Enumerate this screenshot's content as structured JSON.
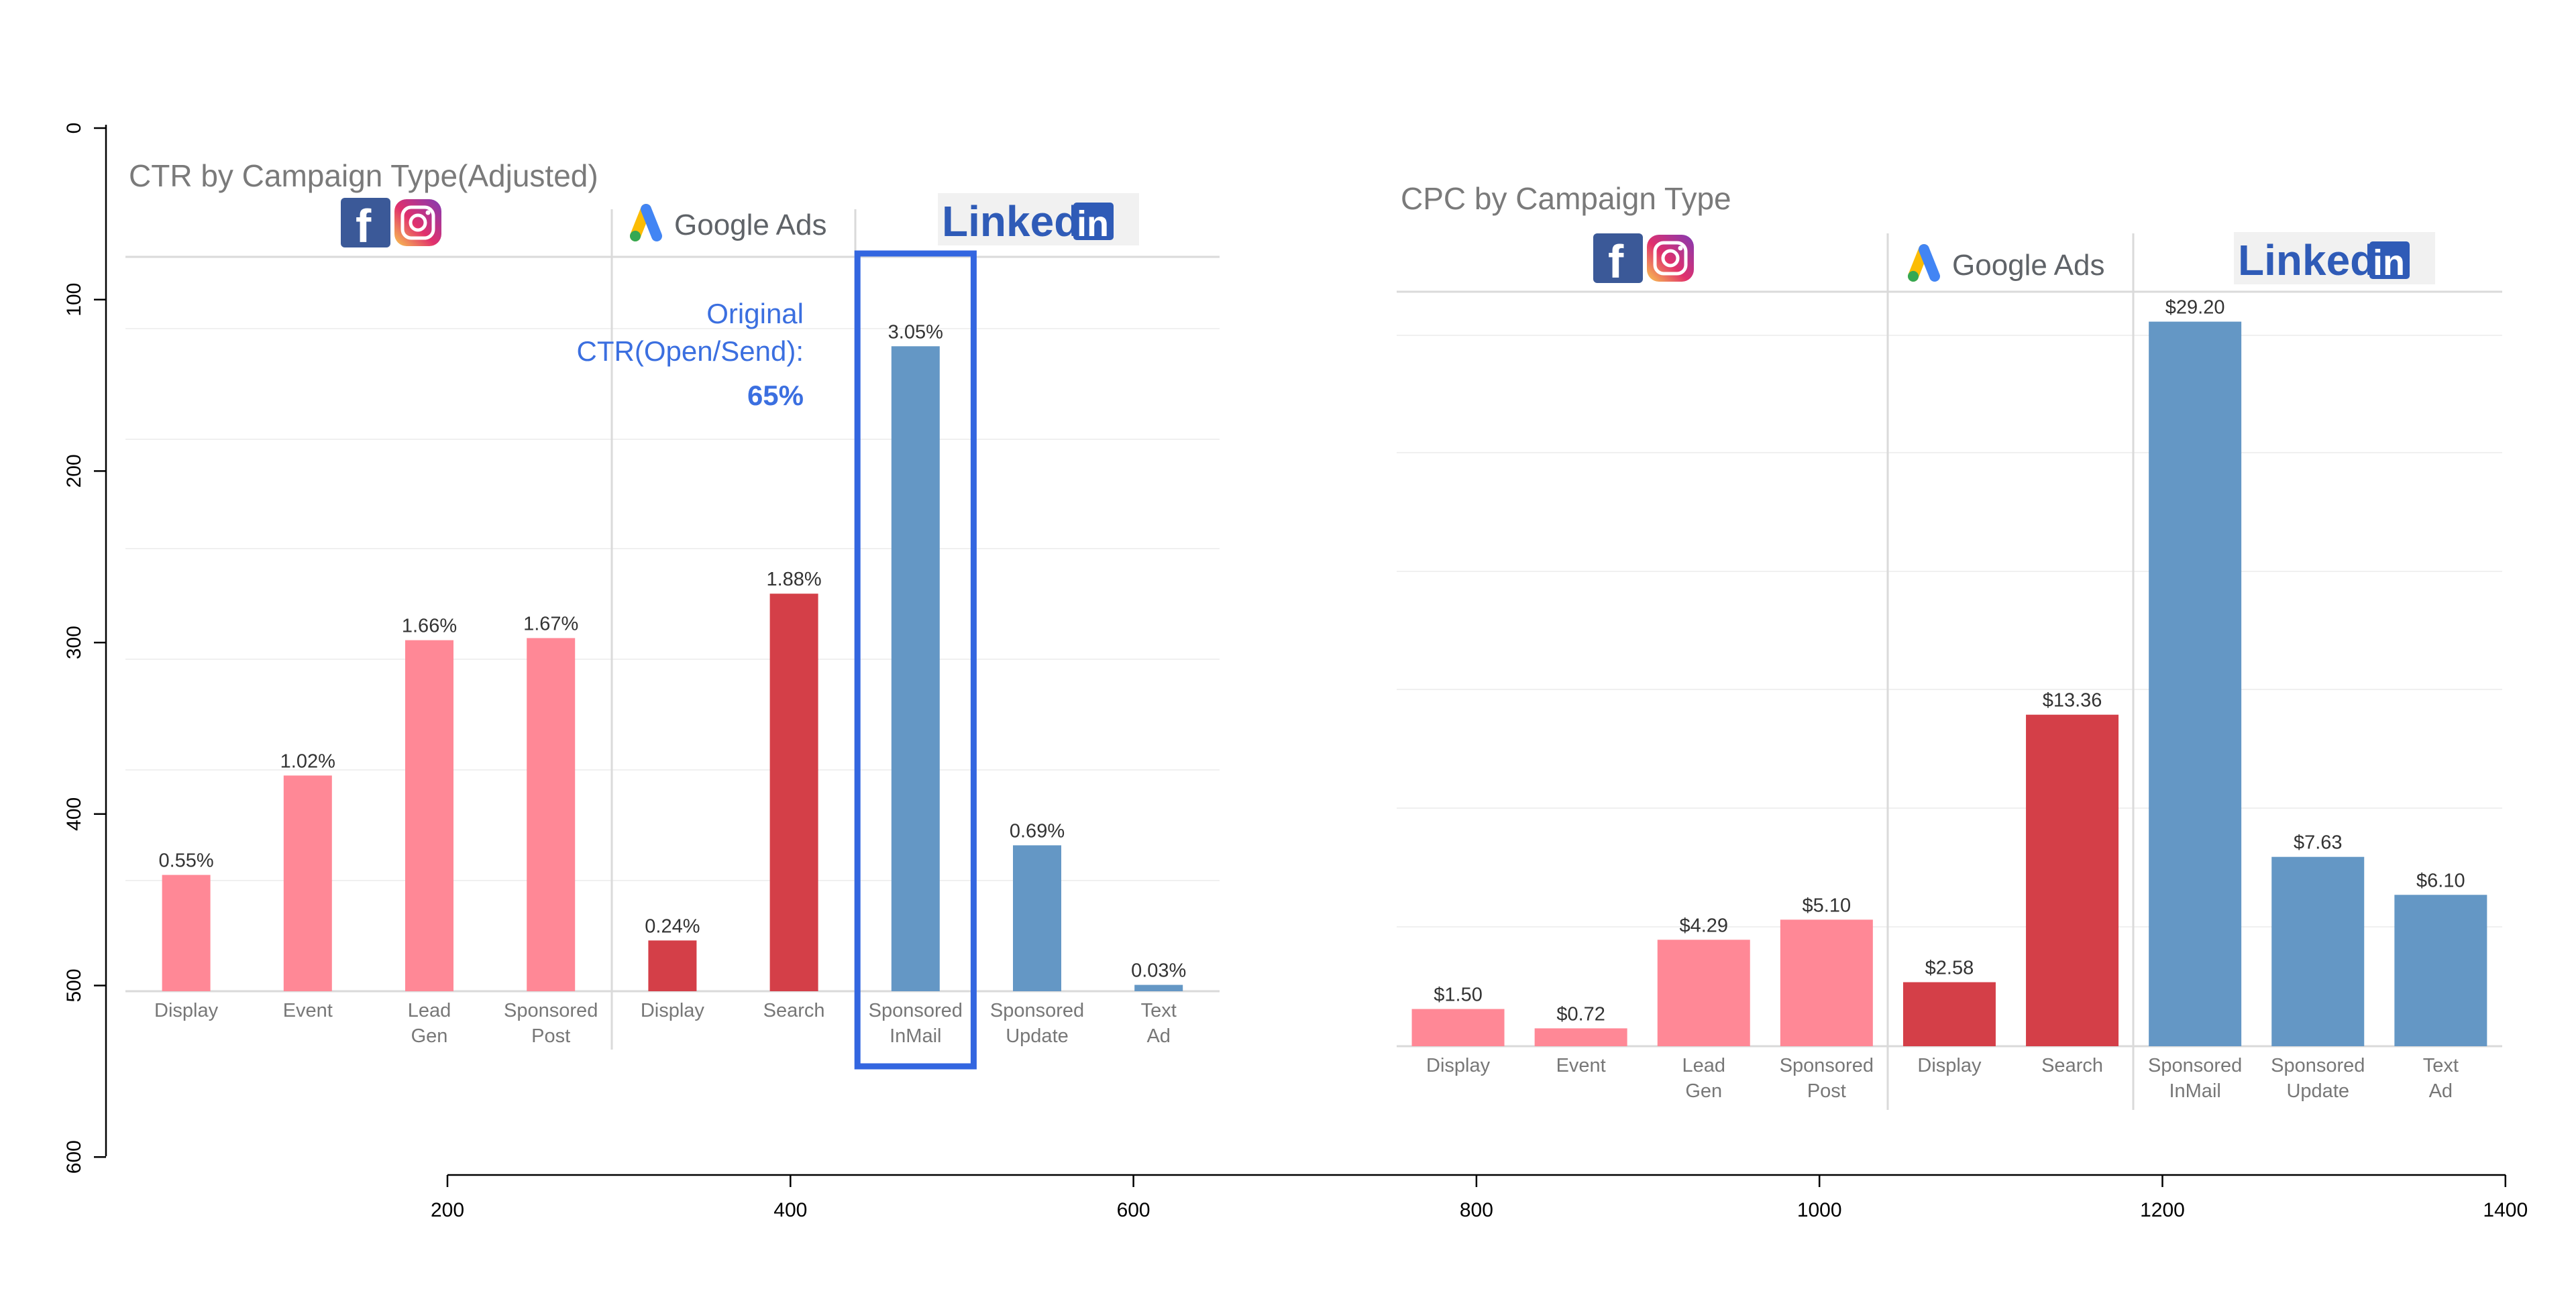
{
  "colors": {
    "facebook_instagram": "#ff8896",
    "google_ads": "#d43f48",
    "linkedin": "#6497c5",
    "highlight": "#3366e0",
    "annotation": "#3b6fe0"
  },
  "axes": {
    "x_ticks": [
      "200",
      "400",
      "600",
      "800",
      "1000",
      "1200",
      "1400"
    ],
    "y_ticks": [
      "0",
      "100",
      "200",
      "300",
      "400",
      "500",
      "600"
    ]
  },
  "annotation": {
    "line1": "Original",
    "line2": "CTR(Open/Send):",
    "line3": "65%"
  },
  "platform_labels": {
    "google_ads": "Google Ads",
    "linkedin_word": "Linked",
    "linkedin_in": "in"
  },
  "chart_data": [
    {
      "type": "bar",
      "title": "CTR by Campaign Type(Adjusted)",
      "unit": "%",
      "ylim": [
        0,
        3.2
      ],
      "groups": [
        {
          "platform": "facebook-instagram",
          "categories": [
            "Display",
            "Event",
            "Lead Gen",
            "Sponsored Post"
          ],
          "values": [
            0.55,
            1.02,
            1.66,
            1.67
          ],
          "labels": [
            "0.55%",
            "1.02%",
            "1.66%",
            "1.67%"
          ]
        },
        {
          "platform": "google-ads",
          "categories": [
            "Display",
            "Search"
          ],
          "values": [
            0.24,
            1.88
          ],
          "labels": [
            "0.24%",
            "1.88%"
          ]
        },
        {
          "platform": "linkedin",
          "categories": [
            "Sponsored InMail",
            "Sponsored Update",
            "Text Ad"
          ],
          "values": [
            3.05,
            0.69,
            0.03
          ],
          "labels": [
            "3.05%",
            "0.69%",
            "0.03%"
          ]
        }
      ],
      "highlighted_category": "Sponsored InMail"
    },
    {
      "type": "bar",
      "title": "CPC by Campaign Type",
      "unit": "$",
      "ylim": [
        0,
        30
      ],
      "groups": [
        {
          "platform": "facebook-instagram",
          "categories": [
            "Display",
            "Event",
            "Lead Gen",
            "Sponsored Post"
          ],
          "values": [
            1.5,
            0.72,
            4.29,
            5.1
          ],
          "labels": [
            "$1.50",
            "$0.72",
            "$4.29",
            "$5.10"
          ]
        },
        {
          "platform": "google-ads",
          "categories": [
            "Display",
            "Search"
          ],
          "values": [
            2.58,
            13.36
          ],
          "labels": [
            "$2.58",
            "$13.36"
          ]
        },
        {
          "platform": "linkedin",
          "categories": [
            "Sponsored InMail",
            "Sponsored Update",
            "Text Ad"
          ],
          "values": [
            29.2,
            7.63,
            6.1
          ],
          "labels": [
            "$29.20",
            "$7.63",
            "$6.10"
          ]
        }
      ]
    }
  ]
}
